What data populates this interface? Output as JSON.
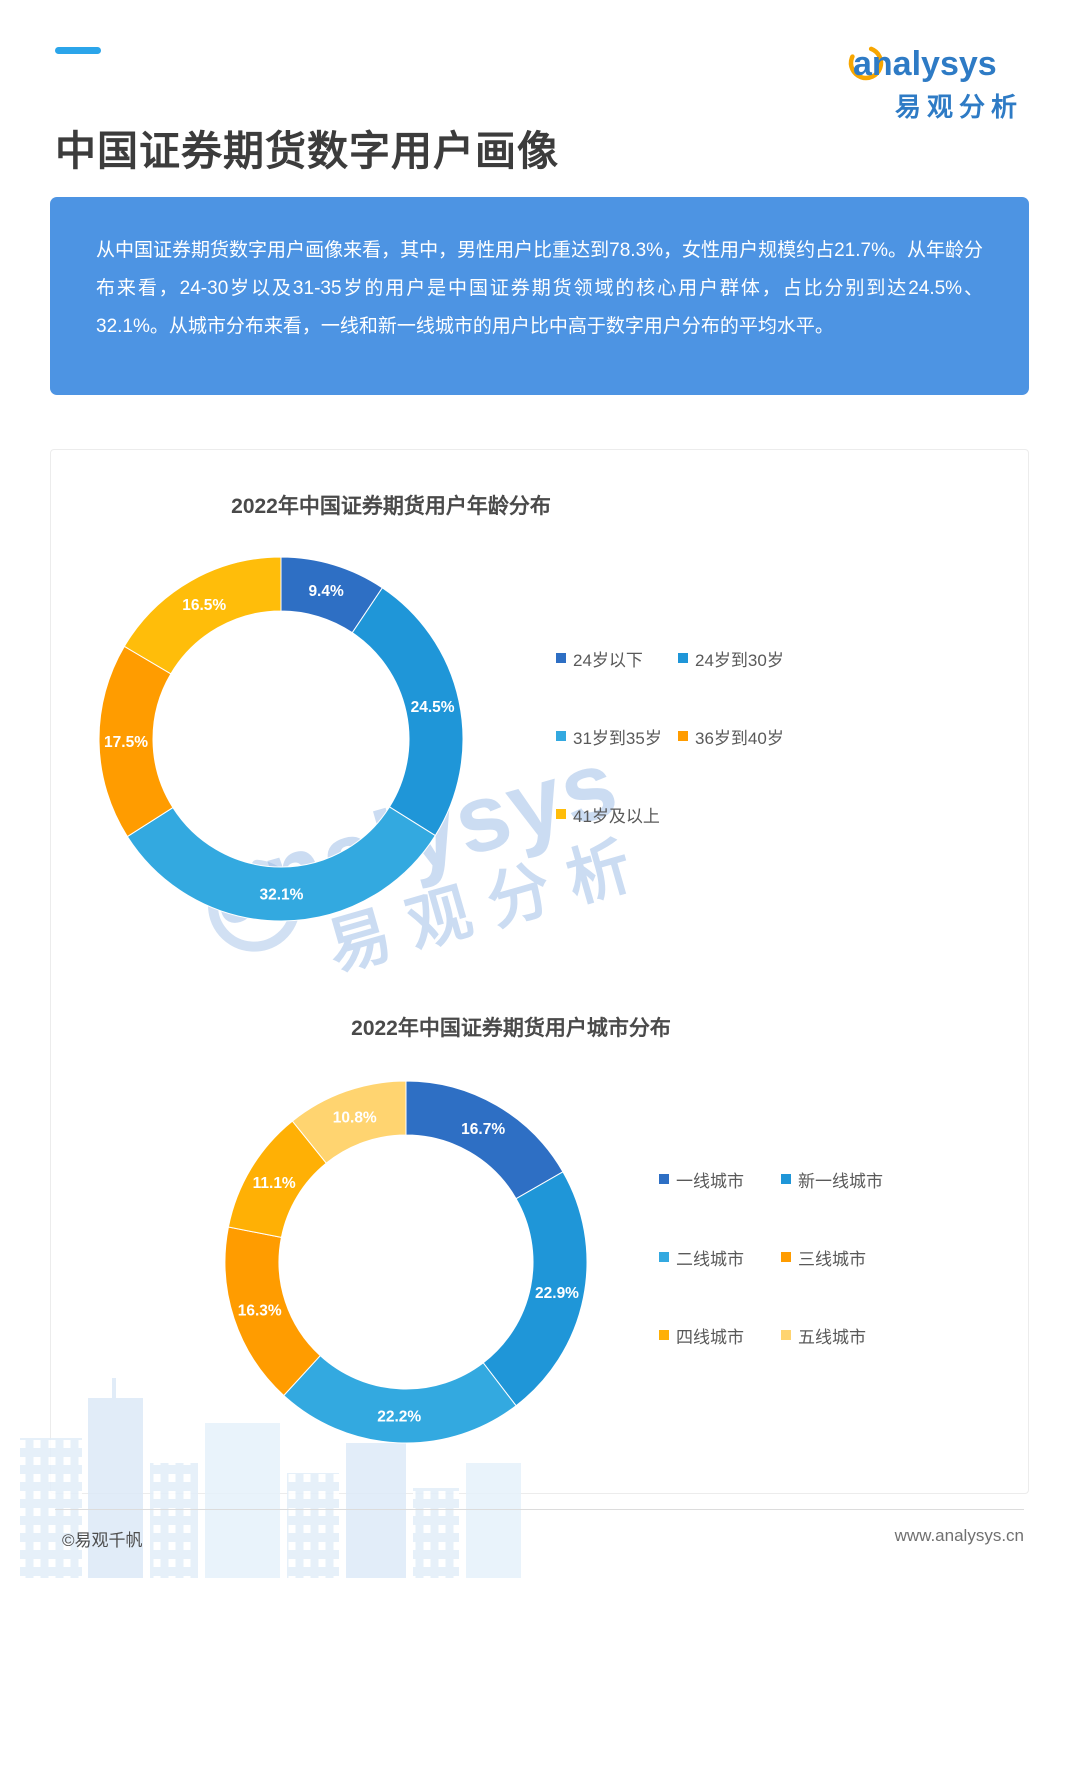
{
  "page": {
    "title": "中国证券期货数字用户画像",
    "logo": {
      "brand": "analysys",
      "brand_cn": "易观分析"
    },
    "summary": "从中国证券期货数字用户画像来看，其中，男性用户比重达到78.3%，女性用户规模约占21.7%。从年龄分布来看，24-30岁以及31-35岁的用户是中国证券期货领域的核心用户群体，占比分别到达24.5%、32.1%。从城市分布来看，一线和新一线城市的用户比中高于数字用户分布的平均水平。",
    "watermark": {
      "line1": "analysys",
      "line2": "易观分析"
    },
    "footer": {
      "left": "©易观千帆",
      "right": "www.analysys.cn"
    }
  },
  "colors": {
    "accent_dash": "#2BA5EA",
    "summary_box": "#4D94E3",
    "brand_blue": "#2E7BC5",
    "brand_orange": "#F7A600",
    "title_text": "#3C3C3C",
    "legend_text": "#595959"
  },
  "chart_data": [
    {
      "type": "pie",
      "donut": true,
      "title": "2022年中国证券期货用户年龄分布",
      "categories": [
        "24岁以下",
        "24岁到30岁",
        "31岁到35岁",
        "36岁到40岁",
        "41岁及以上"
      ],
      "values": [
        9.4,
        24.5,
        32.1,
        17.5,
        16.5
      ],
      "labels": [
        "9.4%",
        "24.5%",
        "32.1%",
        "17.5%",
        "16.5%"
      ],
      "colors": [
        "#2E6FC4",
        "#1F96D8",
        "#33A9E0",
        "#FF9C00",
        "#FFBD0A"
      ],
      "start_angle_deg": 0,
      "legend_position": "right"
    },
    {
      "type": "pie",
      "donut": true,
      "title": "2022年中国证券期货用户城市分布",
      "categories": [
        "一线城市",
        "新一线城市",
        "二线城市",
        "三线城市",
        "四线城市",
        "五线城市"
      ],
      "values": [
        16.7,
        22.9,
        22.2,
        16.3,
        11.1,
        10.8
      ],
      "labels": [
        "16.7%",
        "22.9%",
        "22.2%",
        "16.3%",
        "11.1%",
        "10.8%"
      ],
      "colors": [
        "#2E6FC4",
        "#1F96D8",
        "#33A9E0",
        "#FF9C00",
        "#FFB005",
        "#FFD470"
      ],
      "start_angle_deg": 0,
      "legend_position": "right"
    }
  ]
}
